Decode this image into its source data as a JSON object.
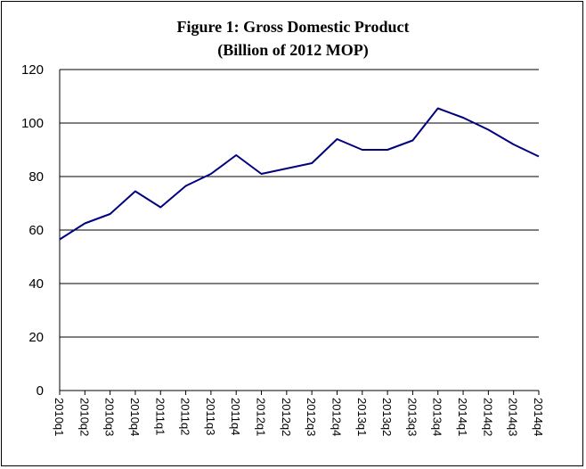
{
  "chart_data": {
    "type": "line",
    "title": "Figure 1: Gross Domestic Product",
    "subtitle": "(Billion of 2012 MOP)",
    "xlabel": "",
    "ylabel": "",
    "ylim": [
      0,
      120
    ],
    "yticks": [
      0,
      20,
      40,
      60,
      80,
      100,
      120
    ],
    "grid": "horizontal",
    "legend": "none",
    "line_color": "#000080",
    "categories": [
      "2010q1",
      "2010q2",
      "2010q3",
      "2010q4",
      "2011q1",
      "2011q2",
      "2011q3",
      "2011q4",
      "2012q1",
      "2012q2",
      "2012q3",
      "2012q4",
      "2013q1",
      "2013q2",
      "2013q3",
      "2013q4",
      "2014q1",
      "2014q2",
      "2014q3",
      "2014q4"
    ],
    "series": [
      {
        "values": [
          56.5,
          62.5,
          66,
          74.5,
          68.5,
          76.5,
          81,
          88,
          81,
          83,
          85,
          94,
          90,
          90,
          93.5,
          105.5,
          102,
          97.5,
          92,
          87.5
        ]
      }
    ]
  }
}
